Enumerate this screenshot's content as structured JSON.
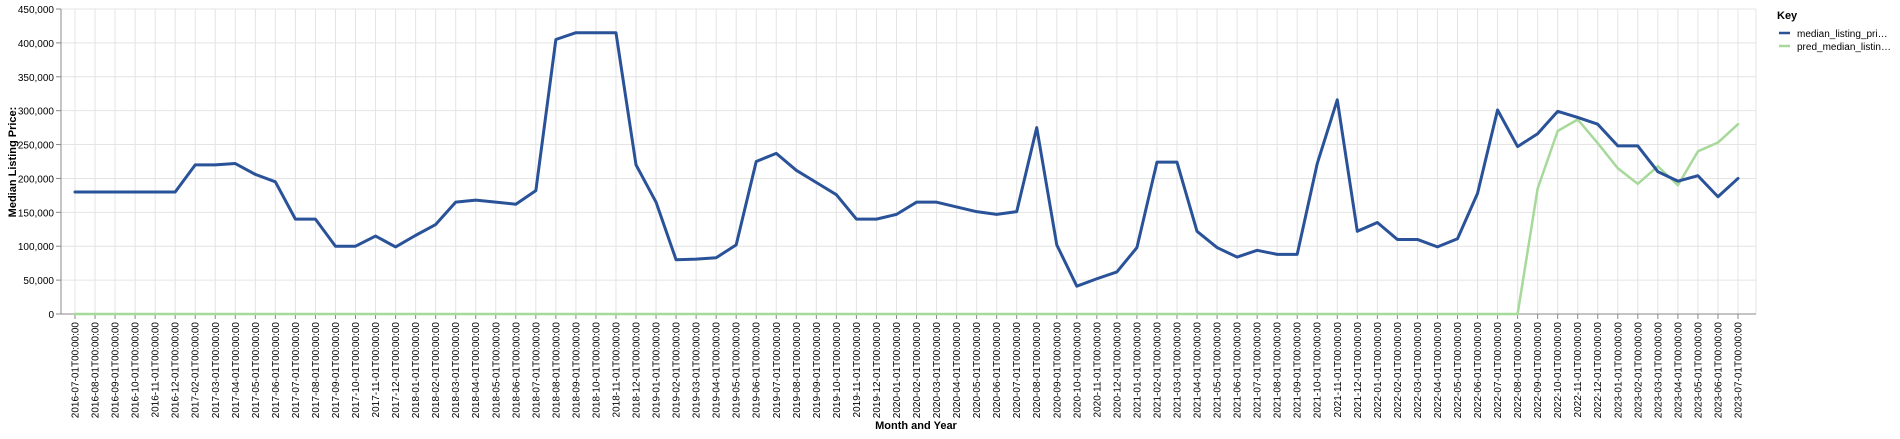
{
  "chart_data": {
    "type": "line",
    "xlabel": "Month and Year",
    "ylabel": "Median Listing Price:",
    "ylim": [
      0,
      450000
    ],
    "yticks": [
      "0",
      "50,000",
      "100,000",
      "150,000",
      "200,000",
      "250,000",
      "300,000",
      "350,000",
      "400,000",
      "450,000"
    ],
    "ytick_values": [
      0,
      50000,
      100000,
      150000,
      200000,
      250000,
      300000,
      350000,
      400000,
      450000
    ],
    "grid": true,
    "legend": {
      "title": "Key",
      "placement": "top-right"
    },
    "categories": [
      "2016-07-01T00:00:00",
      "2016-08-01T00:00:00",
      "2016-09-01T00:00:00",
      "2016-10-01T00:00:00",
      "2016-11-01T00:00:00",
      "2016-12-01T00:00:00",
      "2017-02-01T00:00:00",
      "2017-03-01T00:00:00",
      "2017-04-01T00:00:00",
      "2017-05-01T00:00:00",
      "2017-06-01T00:00:00",
      "2017-07-01T00:00:00",
      "2017-08-01T00:00:00",
      "2017-09-01T00:00:00",
      "2017-10-01T00:00:00",
      "2017-11-01T00:00:00",
      "2017-12-01T00:00:00",
      "2018-01-01T00:00:00",
      "2018-02-01T00:00:00",
      "2018-03-01T00:00:00",
      "2018-04-01T00:00:00",
      "2018-05-01T00:00:00",
      "2018-06-01T00:00:00",
      "2018-07-01T00:00:00",
      "2018-08-01T00:00:00",
      "2018-09-01T00:00:00",
      "2018-10-01T00:00:00",
      "2018-11-01T00:00:00",
      "2018-12-01T00:00:00",
      "2019-01-01T00:00:00",
      "2019-02-01T00:00:00",
      "2019-03-01T00:00:00",
      "2019-04-01T00:00:00",
      "2019-05-01T00:00:00",
      "2019-06-01T00:00:00",
      "2019-07-01T00:00:00",
      "2019-08-01T00:00:00",
      "2019-09-01T00:00:00",
      "2019-10-01T00:00:00",
      "2019-11-01T00:00:00",
      "2019-12-01T00:00:00",
      "2020-01-01T00:00:00",
      "2020-02-01T00:00:00",
      "2020-03-01T00:00:00",
      "2020-04-01T00:00:00",
      "2020-05-01T00:00:00",
      "2020-06-01T00:00:00",
      "2020-07-01T00:00:00",
      "2020-08-01T00:00:00",
      "2020-09-01T00:00:00",
      "2020-10-01T00:00:00",
      "2020-11-01T00:00:00",
      "2020-12-01T00:00:00",
      "2021-01-01T00:00:00",
      "2021-02-01T00:00:00",
      "2021-03-01T00:00:00",
      "2021-04-01T00:00:00",
      "2021-05-01T00:00:00",
      "2021-06-01T00:00:00",
      "2021-07-01T00:00:00",
      "2021-08-01T00:00:00",
      "2021-09-01T00:00:00",
      "2021-10-01T00:00:00",
      "2021-11-01T00:00:00",
      "2021-12-01T00:00:00",
      "2022-01-01T00:00:00",
      "2022-02-01T00:00:00",
      "2022-03-01T00:00:00",
      "2022-04-01T00:00:00",
      "2022-05-01T00:00:00",
      "2022-06-01T00:00:00",
      "2022-07-01T00:00:00",
      "2022-08-01T00:00:00",
      "2022-09-01T00:00:00",
      "2022-10-01T00:00:00",
      "2022-11-01T00:00:00",
      "2022-12-01T00:00:00",
      "2023-01-01T00:00:00",
      "2023-02-01T00:00:00",
      "2023-03-01T00:00:00",
      "2023-04-01T00:00:00",
      "2023-05-01T00:00:00",
      "2023-06-01T00:00:00",
      "2023-07-01T00:00:00"
    ],
    "series": [
      {
        "name": "median_listing_pri…",
        "color": "#2a5298",
        "values": [
          180000,
          180000,
          180000,
          180000,
          180000,
          180000,
          220000,
          220000,
          222000,
          206000,
          195000,
          140000,
          140000,
          100000,
          100000,
          115000,
          99000,
          116000,
          132000,
          165000,
          168000,
          165000,
          162000,
          182000,
          405000,
          415000,
          415000,
          415000,
          220000,
          165000,
          80000,
          81000,
          83000,
          102000,
          225000,
          237000,
          212000,
          194000,
          176000,
          140000,
          140000,
          147000,
          165000,
          165000,
          158000,
          151000,
          147000,
          151000,
          275000,
          102000,
          41000,
          52000,
          62000,
          98000,
          224000,
          224000,
          122000,
          98000,
          84000,
          94000,
          88000,
          88000,
          222000,
          316000,
          122000,
          135000,
          110000,
          110000,
          99000,
          111000,
          178000,
          301000,
          247000,
          266000,
          299000,
          290000,
          280000,
          248000,
          248000,
          210000,
          196000,
          204000,
          173000,
          200000
        ]
      },
      {
        "name": "pred_median_listin…",
        "color": "#a6d99a",
        "values": [
          0,
          0,
          0,
          0,
          0,
          0,
          0,
          0,
          0,
          0,
          0,
          0,
          0,
          0,
          0,
          0,
          0,
          0,
          0,
          0,
          0,
          0,
          0,
          0,
          0,
          0,
          0,
          0,
          0,
          0,
          0,
          0,
          0,
          0,
          0,
          0,
          0,
          0,
          0,
          0,
          0,
          0,
          0,
          0,
          0,
          0,
          0,
          0,
          0,
          0,
          0,
          0,
          0,
          0,
          0,
          0,
          0,
          0,
          0,
          0,
          0,
          0,
          0,
          0,
          0,
          0,
          0,
          0,
          0,
          0,
          0,
          0,
          0,
          185000,
          270000,
          287000,
          252000,
          215000,
          192000,
          218000,
          190000,
          240000,
          253000,
          280000
        ]
      }
    ]
  }
}
